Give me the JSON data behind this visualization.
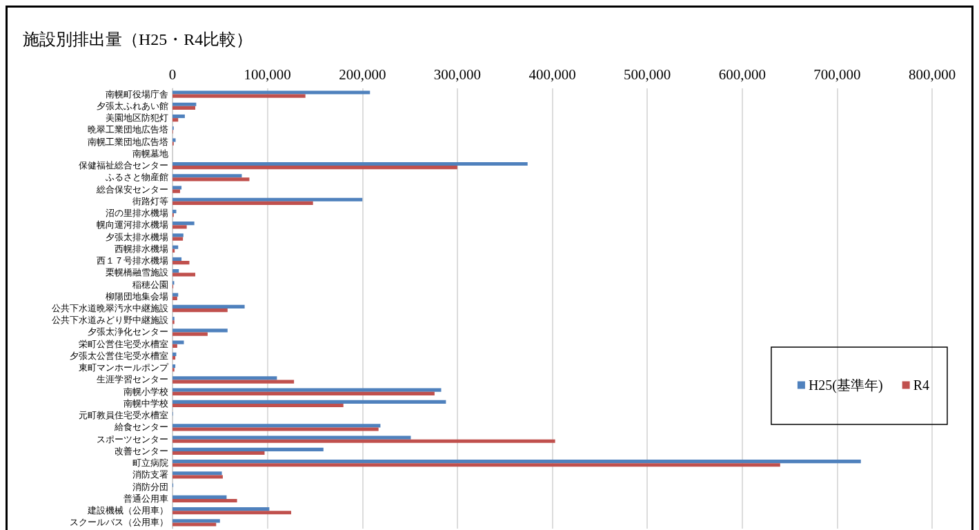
{
  "chart_data": {
    "type": "bar",
    "orientation": "horizontal",
    "title": "施設別排出量（H25・R4比較）",
    "categories": [
      "南幌町役場庁舎",
      "夕張太ふれあい館",
      "美園地区防犯灯",
      "晩翠工業団地広告塔",
      "南幌工業団地広告塔",
      "南幌墓地",
      "保健福祉総合センター",
      "ふるさと物産館",
      "総合保安センター",
      "街路灯等",
      "沼の里排水機場",
      "幌向運河排水機場",
      "夕張太排水機場",
      "西幌排水機場",
      "西１７号排水機場",
      "栗幌橋融雪施設",
      "稲穂公園",
      "柳陽団地集会場",
      "公共下水道晩翠汚水中継施設",
      "公共下水道みどり野中継施設",
      "夕張太浄化センター",
      "栄町公営住宅受水槽室",
      "夕張太公営住宅受水槽室",
      "東町マンホールポンプ",
      "生涯学習センター",
      "南幌小学校",
      "南幌中学校",
      "元町教員住宅受水槽室",
      "給食センター",
      "スポーツセンター",
      "改善センター",
      "町立病院",
      "消防支署",
      "消防分団",
      "普通公用車",
      "建設機械（公用車）",
      "スクールバス（公用車）"
    ],
    "series": [
      {
        "name": "H25(基準年)",
        "color": "#4f81bd",
        "values": [
          208000,
          25000,
          13000,
          1300,
          3300,
          null,
          374000,
          73000,
          9500,
          200000,
          4000,
          23000,
          11500,
          6000,
          9500,
          6700,
          1800,
          6000,
          76000,
          2000,
          58000,
          12000,
          4000,
          3000,
          110000,
          283000,
          288000,
          500,
          219000,
          251000,
          159000,
          725000,
          52000,
          800,
          57000,
          102000,
          50000
        ]
      },
      {
        "name": "R4",
        "color": "#c0504d",
        "values": [
          140000,
          24000,
          6000,
          500,
          1300,
          null,
          300000,
          81000,
          8000,
          148000,
          1300,
          15000,
          11000,
          2300,
          17800,
          24000,
          800,
          5000,
          58000,
          2000,
          37000,
          5000,
          3000,
          2000,
          128000,
          276000,
          180000,
          null,
          217000,
          403000,
          97000,
          640000,
          53000,
          null,
          68000,
          125000,
          46000
        ]
      }
    ],
    "xlim": [
      0,
      800000
    ],
    "xticks": [
      0,
      {
        "value": 100000,
        "label": "100,000"
      },
      {
        "value": 200000,
        "label": "200,000"
      },
      {
        "value": 300000,
        "label": "300,000"
      },
      {
        "value": 400000,
        "label": "400,000"
      },
      {
        "value": 500000,
        "label": "500,000"
      },
      {
        "value": 600000,
        "label": "600,000"
      },
      {
        "value": 700000,
        "label": "700,000"
      },
      {
        "value": 800000,
        "label": "800,000"
      }
    ],
    "grid": "x",
    "legend": "right"
  }
}
